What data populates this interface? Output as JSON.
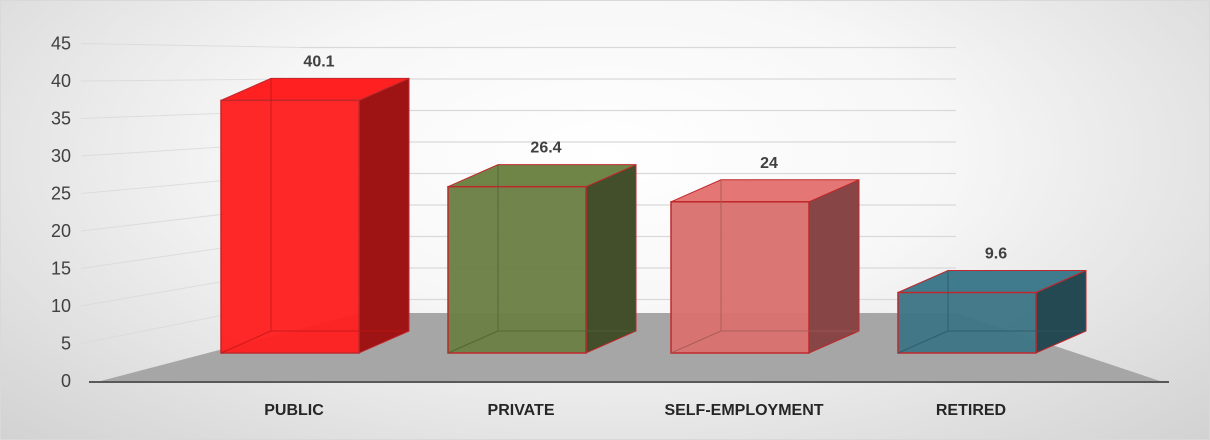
{
  "chart_data": {
    "type": "bar",
    "style": "3d",
    "categories": [
      "PUBLIC",
      "PRIVATE",
      "SELF-EMPLOYMENT",
      "RETIRED"
    ],
    "values": [
      40.1,
      26.4,
      24,
      9.6
    ],
    "data_labels": [
      "40.1",
      "26.4",
      "24",
      "9.6"
    ],
    "title": "",
    "xlabel": "",
    "ylabel": "",
    "ylim": [
      0,
      45
    ],
    "yticks": [
      "0",
      "5",
      "10",
      "15",
      "20",
      "25",
      "30",
      "35",
      "40",
      "45"
    ],
    "grid": true,
    "legend": "none",
    "colors": {
      "PUBLIC": "#ff1f1f",
      "PRIVATE": "#6a7f44",
      "SELF-EMPLOYMENT": "#d9716f",
      "RETIRED": "#3c7585"
    },
    "edge_color": "#c0282c",
    "floor_color": "#a6a6a6",
    "axis_color": "#595959",
    "gridline_color": "#d9d9d9"
  }
}
